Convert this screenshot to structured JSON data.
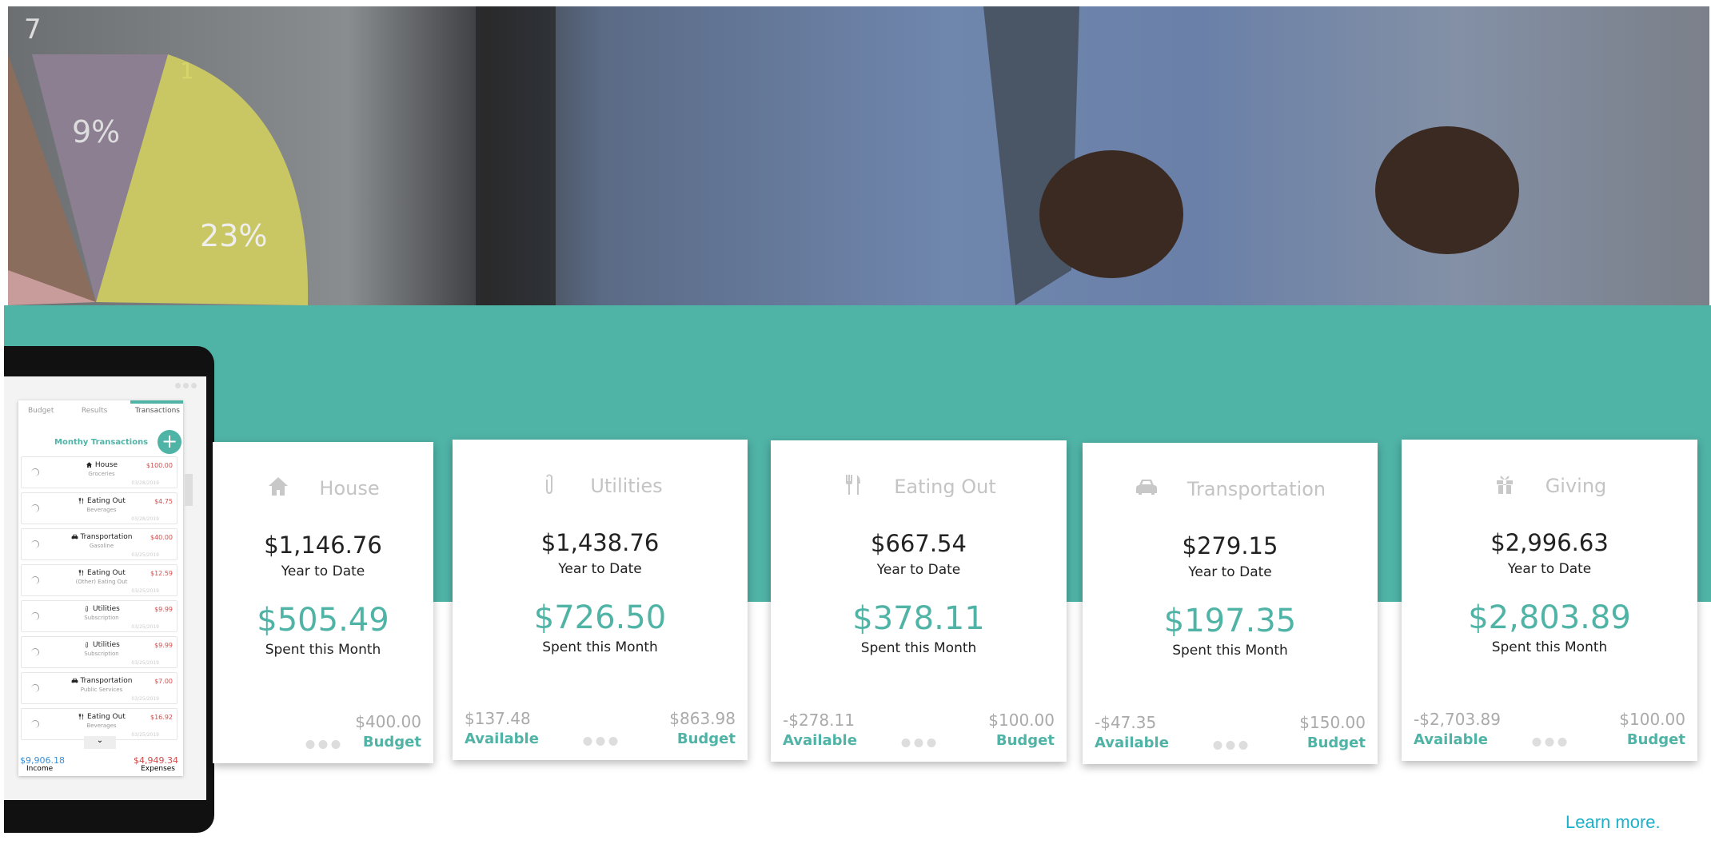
{
  "hero": {
    "pie_labels": [
      "7",
      "1",
      "9%",
      "23%"
    ]
  },
  "colors": {
    "accent": "#4fb3a6",
    "expense": "#d24b4b",
    "income": "#3a8fd6",
    "link": "#1eb0c9"
  },
  "tablet": {
    "tabs": [
      "Budget",
      "Results",
      "Transactions"
    ],
    "active_tab": "Transactions",
    "section_title": "Monthy Transactions",
    "add_button": "+",
    "transactions": [
      {
        "icon": "house-icon",
        "category": "House",
        "sub": "Groceries",
        "amount": "$100.00",
        "date": "03/28/2019"
      },
      {
        "icon": "utensils-icon",
        "category": "Eating Out",
        "sub": "Beverages",
        "amount": "$4.75",
        "date": "03/28/2019"
      },
      {
        "icon": "car-icon",
        "category": "Transportation",
        "sub": "Gasoline",
        "amount": "$40.00",
        "date": "03/25/2019"
      },
      {
        "icon": "utensils-icon",
        "category": "Eating Out",
        "sub": "(Other) Eating Out",
        "amount": "$12.59",
        "date": "03/25/2019"
      },
      {
        "icon": "paperclip-icon",
        "category": "Utilities",
        "sub": "Subscription",
        "amount": "$9.99",
        "date": "03/25/2019"
      },
      {
        "icon": "paperclip-icon",
        "category": "Utilities",
        "sub": "Subscription",
        "amount": "$9.99",
        "date": "03/25/2019"
      },
      {
        "icon": "car-icon",
        "category": "Transportation",
        "sub": "Public Services",
        "amount": "$7.00",
        "date": "03/25/2019"
      },
      {
        "icon": "utensils-icon",
        "category": "Eating Out",
        "sub": "Beverages",
        "amount": "$16.92",
        "date": "03/25/2019"
      }
    ],
    "income": {
      "value": "$9,906.18",
      "label": "Income"
    },
    "expenses": {
      "value": "$4,949.34",
      "label": "Expenses"
    }
  },
  "cards": [
    {
      "icon": "house-icon",
      "title": "House",
      "ytd": "$1,146.76",
      "ytd_label": "Year to Date",
      "spent": "$505.49",
      "spent_label": "Spent this Month",
      "available": "",
      "available_label": "",
      "budget": "$400.00",
      "budget_label": "Budget"
    },
    {
      "icon": "paperclip-icon",
      "title": "Utilities",
      "ytd": "$1,438.76",
      "ytd_label": "Year to Date",
      "spent": "$726.50",
      "spent_label": "Spent this Month",
      "available": "$137.48",
      "available_label": "Available",
      "budget": "$863.98",
      "budget_label": "Budget"
    },
    {
      "icon": "utensils-icon",
      "title": "Eating Out",
      "ytd": "$667.54",
      "ytd_label": "Year to Date",
      "spent": "$378.11",
      "spent_label": "Spent this Month",
      "available": "-$278.11",
      "available_label": "Available",
      "budget": "$100.00",
      "budget_label": "Budget"
    },
    {
      "icon": "car-icon",
      "title": "Transportation",
      "ytd": "$279.15",
      "ytd_label": "Year to Date",
      "spent": "$197.35",
      "spent_label": "Spent this Month",
      "available": "-$47.35",
      "available_label": "Available",
      "budget": "$150.00",
      "budget_label": "Budget"
    },
    {
      "icon": "gift-icon",
      "title": "Giving",
      "ytd": "$2,996.63",
      "ytd_label": "Year to Date",
      "spent": "$2,803.89",
      "spent_label": "Spent this Month",
      "available": "-$2,703.89",
      "available_label": "Available",
      "budget": "$100.00",
      "budget_label": "Budget"
    }
  ],
  "learn_more": "Learn more."
}
